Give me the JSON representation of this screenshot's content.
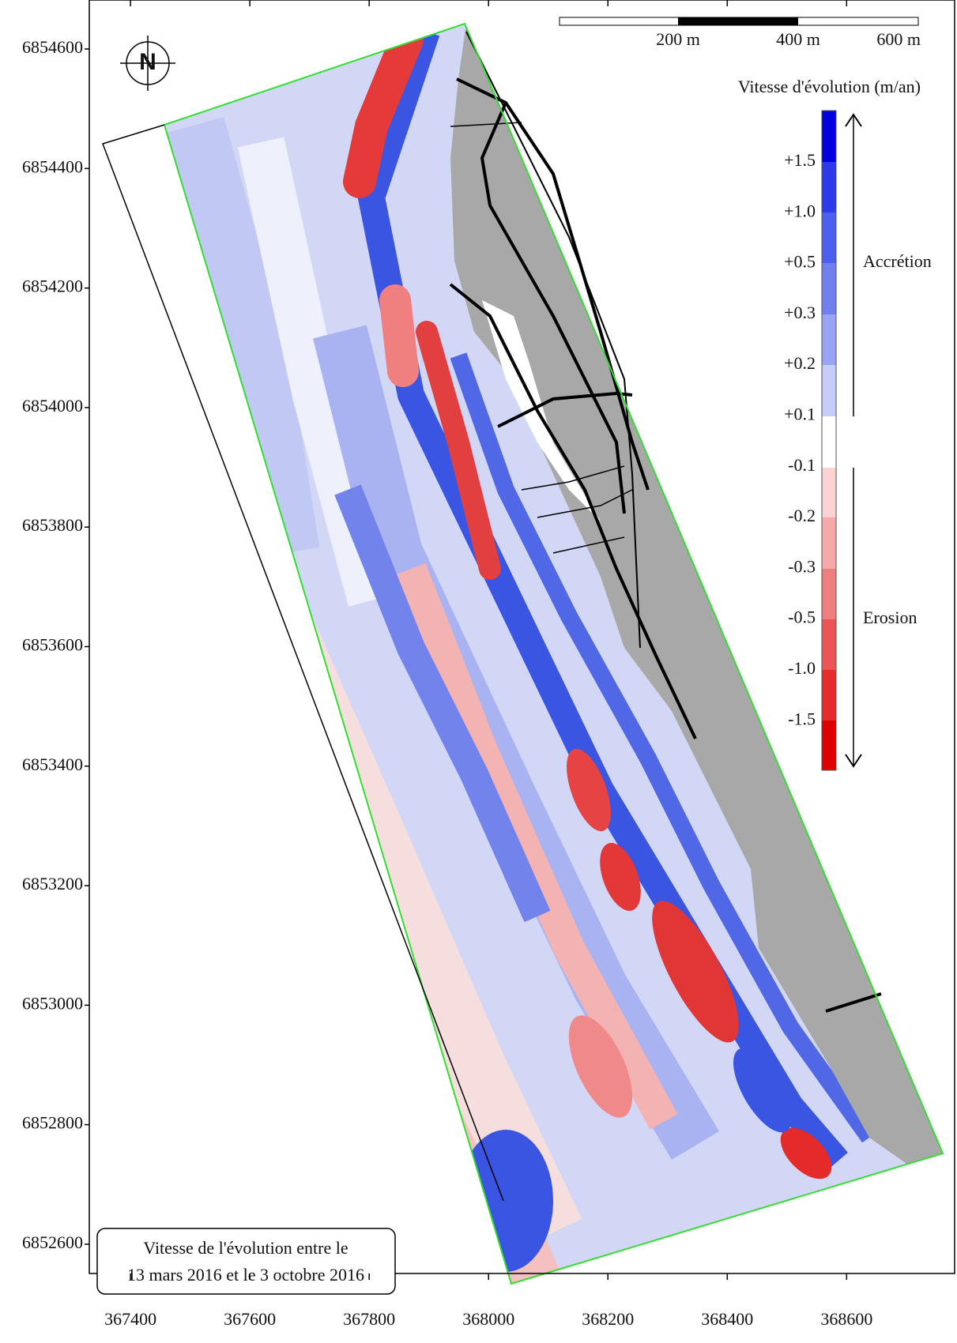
{
  "axes": {
    "xlim": [
      367331,
      368781
    ],
    "ylim": [
      6852551,
      6854682
    ],
    "xticks": [
      367400,
      367600,
      367800,
      368000,
      368200,
      368400,
      368600
    ],
    "yticks": [
      6852600,
      6852800,
      6853000,
      6853200,
      6853400,
      6853600,
      6853800,
      6854000,
      6854200,
      6854400,
      6854600
    ]
  },
  "scale_bar": {
    "labels": [
      "200 m",
      "400 m",
      "600 m"
    ]
  },
  "north_arrow": {
    "label": "N"
  },
  "legend": {
    "title": "Vitesse d'évolution (m/an)",
    "labels": [
      "+1.5",
      "+1.0",
      "+0.5",
      "+0.3",
      "+0.2",
      "+0.1",
      "-0.1",
      "-0.2",
      "-0.3",
      "-0.5",
      "-1.0",
      "-1.5"
    ],
    "accretion": "Accrétion",
    "erosion": "Erosion"
  },
  "caption": {
    "lines": [
      "Vitesse de l'évolution entre le",
      "13 mars 2016 et le 3 octobre 2016"
    ]
  }
}
